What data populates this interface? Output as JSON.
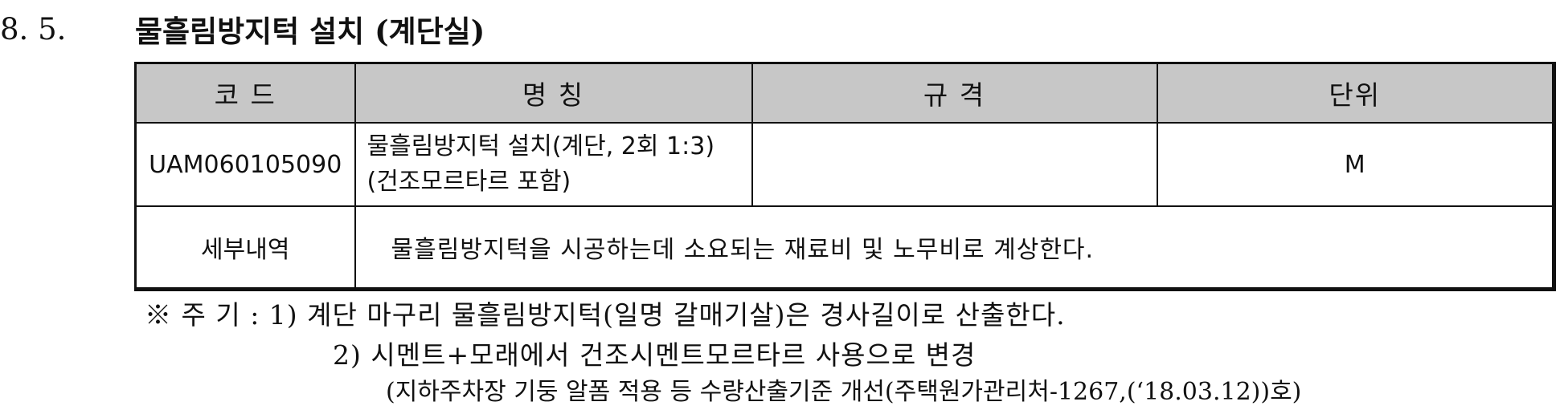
{
  "section": {
    "number": "8. 5.",
    "title": "물흘림방지턱 설치 (계단실)"
  },
  "table": {
    "headers": [
      "코    드",
      "명    칭",
      "규    격",
      "단위"
    ],
    "item": {
      "code": "UAM060105090",
      "name_line1": "물흘림방지턱 설치(계단, 2회 1:3)",
      "name_line2": "(건조모르타르 포함)",
      "spec": "",
      "unit": "M"
    },
    "detail": {
      "label": "세부내역",
      "text": "물흘림방지턱을 시공하는데 소요되는 재료비 및 노무비로 계상한다."
    }
  },
  "notes": {
    "line1": "※ 주   기 : 1) 계단 마구리 물흘림방지턱(일명 갈매기살)은 경사길이로 산출한다.",
    "line2": "2) 시멘트+모래에서 건조시멘트모르타르 사용으로 변경",
    "line3": "(지하주차장 기둥 알폼 적용 등 수량산출기준 개선(주택원가관리처-1267,(‘18.03.12))호)"
  }
}
